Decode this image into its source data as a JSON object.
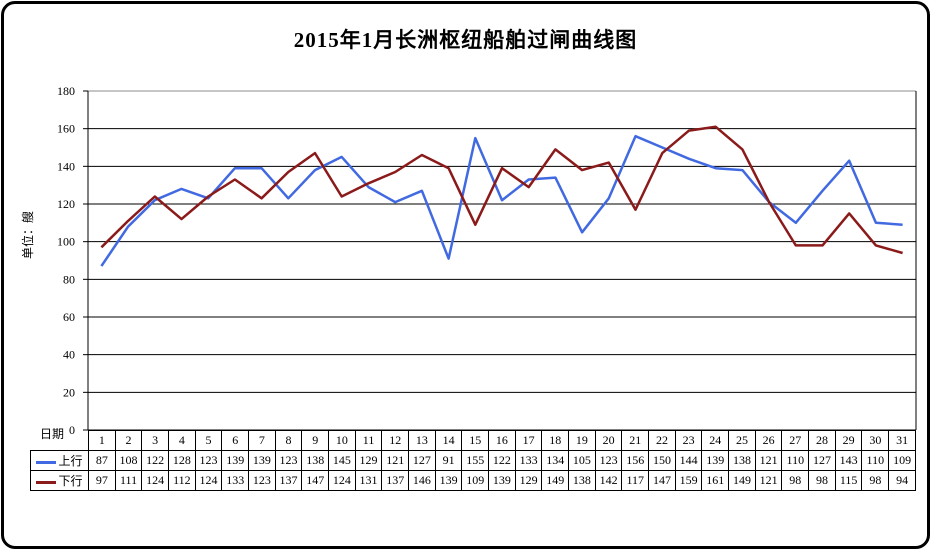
{
  "title": "2015年1月长洲枢纽船舶过闸曲线图",
  "y_axis": {
    "title": "单位：艘"
  },
  "x_axis": {
    "label": "日期"
  },
  "colors": {
    "upbound": "#4169E1",
    "downbound": "#8B1A1A",
    "grid": "#000000",
    "plot_top_border": "#8C8C8C"
  },
  "chart_data": {
    "type": "line",
    "title": "2015年1月长洲枢纽船舶过闸曲线图",
    "xlabel": "日期",
    "ylabel": "单位：艘",
    "ylim": [
      0,
      180
    ],
    "ytick_interval": 20,
    "grid": true,
    "legend_position": "table-left",
    "categories": [
      1,
      2,
      3,
      4,
      5,
      6,
      7,
      8,
      9,
      10,
      11,
      12,
      13,
      14,
      15,
      16,
      17,
      18,
      19,
      20,
      21,
      22,
      23,
      24,
      25,
      26,
      27,
      28,
      29,
      30,
      31
    ],
    "series": [
      {
        "name": "上行",
        "color": "#4169E1",
        "values": [
          87,
          108,
          122,
          128,
          123,
          139,
          139,
          123,
          138,
          145,
          129,
          121,
          127,
          91,
          155,
          122,
          133,
          134,
          105,
          123,
          156,
          150,
          144,
          139,
          138,
          121,
          110,
          127,
          143,
          110,
          109
        ]
      },
      {
        "name": "下行",
        "color": "#8B1A1A",
        "values": [
          97,
          111,
          124,
          112,
          124,
          133,
          123,
          137,
          147,
          124,
          131,
          137,
          146,
          139,
          109,
          139,
          129,
          149,
          138,
          142,
          117,
          147,
          159,
          161,
          149,
          121,
          98,
          98,
          115,
          98,
          94
        ]
      }
    ]
  }
}
